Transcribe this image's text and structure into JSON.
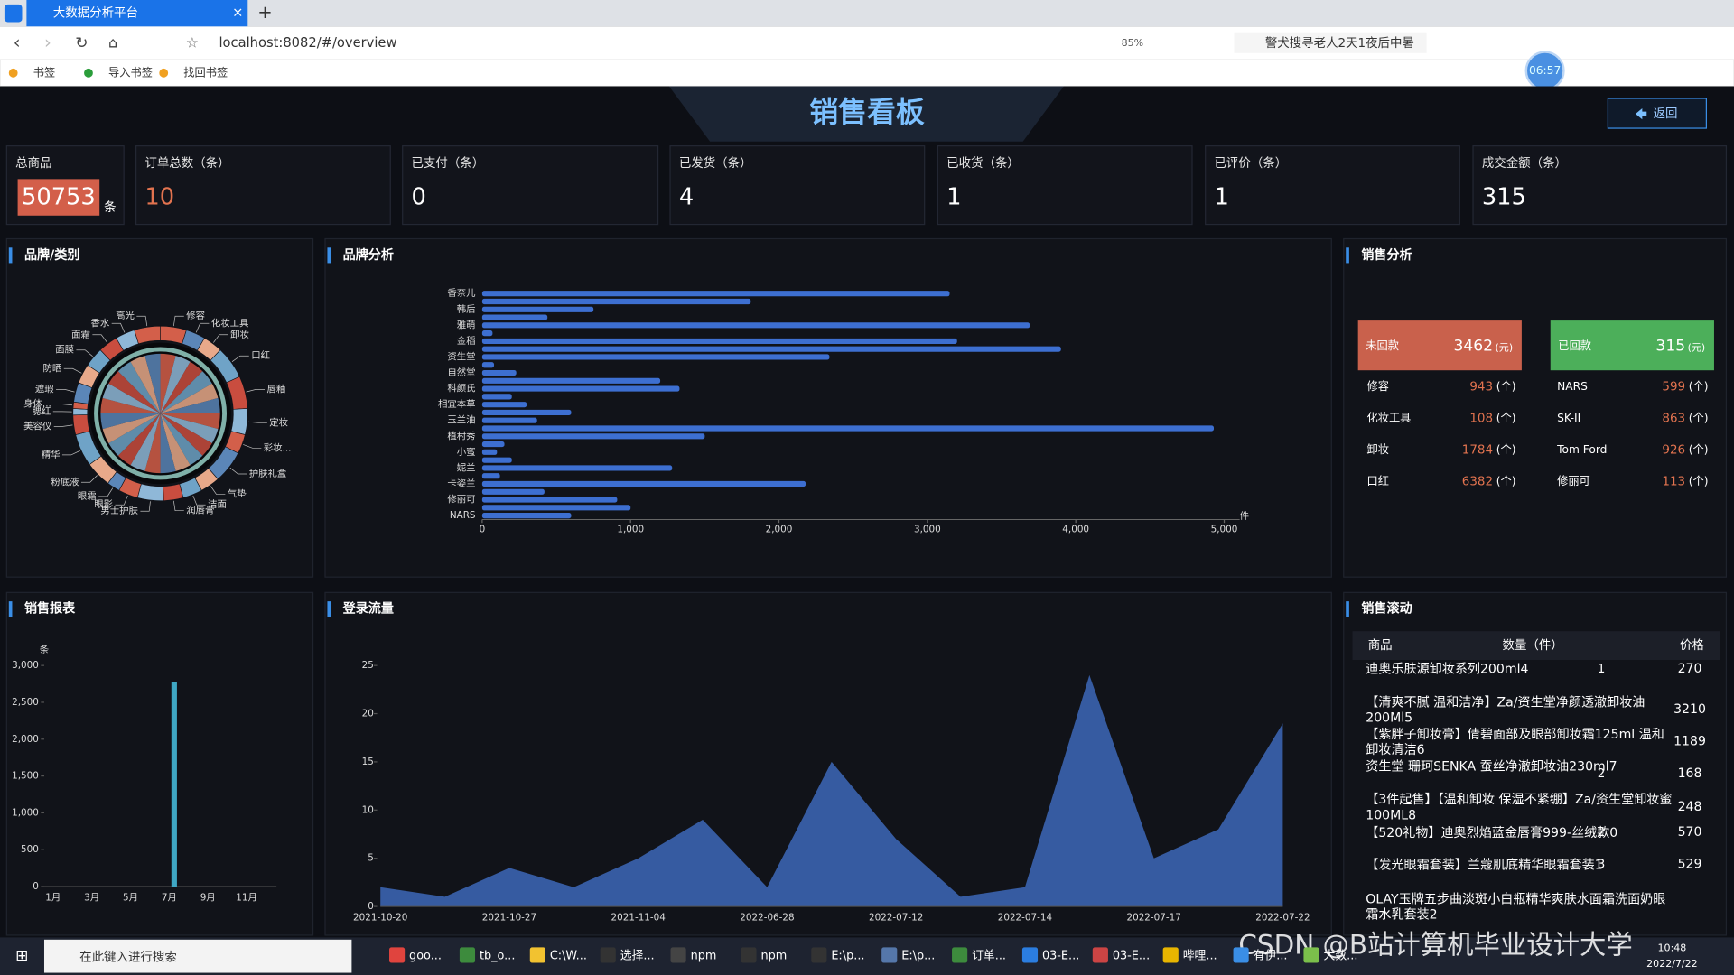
{
  "browser": {
    "tab_title": "大数据分析平台",
    "url": "localhost:8082/#/overview",
    "zoom": "85%",
    "search": "警犬搜寻老人2天1夜后中暑",
    "bookmarks": [
      "书签",
      "导入书签",
      "找回书签"
    ],
    "timer": "06:57"
  },
  "header": {
    "title": "销售看板",
    "back_button": "返回"
  },
  "stats": [
    {
      "label": "总商品",
      "value": 50753,
      "unit": "条"
    },
    {
      "label": "订单总数（条）",
      "value": 10
    },
    {
      "label": "已支付（条）",
      "value": 0
    },
    {
      "label": "已发货（条）",
      "value": 4
    },
    {
      "label": "已收货（条）",
      "value": 1
    },
    {
      "label": "已评价（条）",
      "value": 1
    },
    {
      "label": "成交金额（条）",
      "value": 315
    }
  ],
  "chart_data": [
    {
      "type": "pie",
      "title": "品牌/类别",
      "categories": [
        "修容",
        "化妆工具",
        "卸妆",
        "口红",
        "唇釉",
        "定妆",
        "彩妆...",
        "护肤礼盒",
        "气垫",
        "洁面",
        "润唇膏",
        "男士护肤",
        "眼影",
        "眼霜",
        "粉底液",
        "精华",
        "美容仪",
        "腮红",
        "身体...",
        "遮瑕",
        "防晒",
        "面膜",
        "面霜",
        "香水",
        "高光"
      ],
      "values": [
        4,
        3,
        3,
        5,
        5,
        4,
        3,
        5,
        3,
        3,
        3,
        4,
        3,
        2,
        4,
        5,
        3,
        1,
        1,
        3,
        3,
        3,
        3,
        3,
        4
      ],
      "colors": [
        "#d35f4a",
        "#5b86b8",
        "#e8a98a",
        "#6fa3c7",
        "#c94d3f",
        "#8fb8d8"
      ]
    },
    {
      "type": "bar",
      "orientation": "horizontal",
      "title": "品牌分析",
      "x_label": "件",
      "color": "#3d6fd1",
      "categories": [
        "香奈儿",
        null,
        "韩后",
        null,
        "雅萌",
        null,
        "金稻",
        null,
        "资生堂",
        null,
        "自然堂",
        null,
        "科颜氏",
        null,
        "相宜本草",
        null,
        "玉兰油",
        null,
        "植村秀",
        null,
        "小蜜",
        null,
        "妮兰",
        null,
        "卡姿兰",
        null,
        "修丽可",
        null,
        "NARS"
      ],
      "values": [
        3150,
        1810,
        750,
        440,
        3690,
        70,
        3200,
        3900,
        2340,
        80,
        230,
        1200,
        1330,
        200,
        300,
        600,
        370,
        4930,
        1500,
        150,
        100,
        200,
        1280,
        120,
        2180,
        420,
        910,
        1000,
        600
      ],
      "xlim": [
        0,
        5000
      ],
      "xticks": [
        0,
        {
          "value": 1000,
          "label": "1,000"
        },
        {
          "value": 2000,
          "label": "2,000"
        },
        {
          "value": 3000,
          "label": "3,000"
        },
        {
          "value": 4000,
          "label": "4,000"
        },
        {
          "value": 5000,
          "label": "5,000"
        }
      ]
    },
    {
      "type": "bar",
      "orientation": "vertical",
      "title": "销售报表",
      "y_label": "条",
      "color": "#3fa7c4",
      "categories": [
        "1月",
        null,
        "3月",
        null,
        "5月",
        null,
        "7月",
        null,
        "9月",
        null,
        "11月",
        null
      ],
      "values": [
        0,
        0,
        0,
        0,
        0,
        0,
        2770,
        0,
        0,
        0,
        0,
        0
      ],
      "ylim": [
        0,
        3000
      ],
      "yticks": [
        0,
        500,
        {
          "value": 1000,
          "label": "1,000"
        },
        {
          "value": 1500,
          "label": "1,500"
        },
        {
          "value": 2000,
          "label": "2,000"
        },
        {
          "value": 2500,
          "label": "2,500"
        },
        {
          "value": 3000,
          "label": "3,000"
        }
      ]
    },
    {
      "type": "area",
      "title": "登录流量",
      "color": "#3b64b0",
      "categories": [
        "2021-10-20",
        null,
        "2021-10-27",
        null,
        "2021-11-04",
        null,
        "2022-06-28",
        null,
        "2022-07-12",
        null,
        "2022-07-14",
        null,
        "2022-07-17",
        null,
        "2022-07-22"
      ],
      "values": [
        2,
        1,
        4,
        2,
        5,
        9,
        2,
        15,
        7,
        1,
        2,
        24,
        5,
        8,
        19
      ],
      "ylim": [
        0,
        25
      ],
      "yticks": [
        0,
        5,
        10,
        15,
        20,
        25
      ]
    }
  ],
  "sales_analysis": {
    "title": "销售分析",
    "currency": "(元)",
    "unit": "(个)",
    "unpaid": {
      "label": "未回款",
      "value": 3462
    },
    "paid": {
      "label": "已回款",
      "value": 315
    },
    "left": [
      {
        "name": "修容",
        "value": 943
      },
      {
        "name": "化妆工具",
        "value": 108
      },
      {
        "name": "卸妆",
        "value": 1784
      },
      {
        "name": "口红",
        "value": 6382
      }
    ],
    "right": [
      {
        "name": "NARS",
        "value": 599
      },
      {
        "name": "SK-II",
        "value": 863
      },
      {
        "name": "Tom Ford",
        "value": 926
      },
      {
        "name": "修丽可",
        "value": 113
      }
    ]
  },
  "sales_scroll": {
    "title": "销售滚动",
    "columns": [
      "商品",
      "数量（件）",
      "价格"
    ],
    "rows": [
      {
        "name": "迪奥乐肤源卸妆系列200ml4",
        "qty": 1,
        "price": 270
      },
      {
        "name": "【清爽不腻 温和洁净】Za/资生堂净颜透澈卸妆油200Ml5",
        "price": 3210
      },
      {
        "name": "【紫胖子卸妆膏】倩碧面部及眼部卸妆霜125ml 温和卸妆清洁6",
        "price": 1189
      },
      {
        "name": "资生堂 珊珂SENKA 蚕丝净澈卸妆油230ml7",
        "qty": 2,
        "price": 168
      },
      {
        "name": "【3件起售】【温和卸妆 保湿不紧绷】Za/资生堂卸妆蜜100ML8",
        "price": 248
      },
      {
        "name": "【520礼物】迪奥烈焰蓝金唇膏999-丝绒款0",
        "qty": 2,
        "price": 570
      },
      {
        "name": "【发光眼霜套装】兰蔻肌底精华眼霜套装1",
        "qty": 3,
        "price": 529
      },
      {
        "name": "OLAY玉牌五步曲淡斑小白瓶精华爽肤水面霜洗面奶眼霜水乳套装2"
      }
    ]
  },
  "taskbar": {
    "search": "在此键入进行搜索",
    "items": [
      "goo...",
      "tb_o...",
      "C:\\W...",
      "选择...",
      "npm",
      "npm",
      "E:\\p...",
      "E:\\p...",
      "订单...",
      "03-E...",
      "03-E...",
      "哔哩...",
      "有伊...",
      "大数..."
    ],
    "time": "10:48",
    "date": "2022/7/22"
  },
  "watermark": "CSDN @B站计算机毕业设计大学"
}
